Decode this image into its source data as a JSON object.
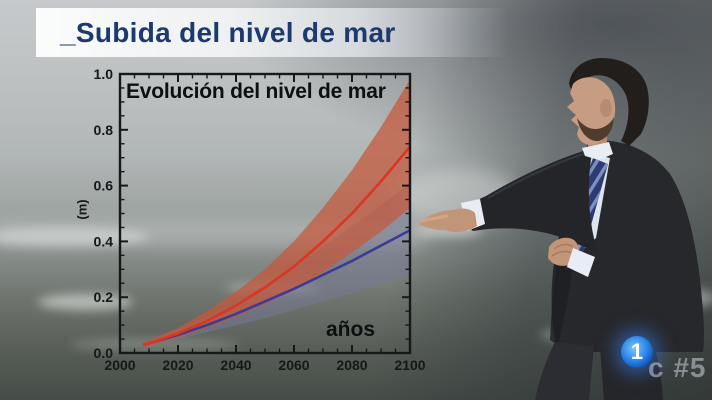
{
  "broadcast": {
    "headline": "_Subida del nivel de mar",
    "headline_color": "#1c3a6e",
    "channel_logo_number": "1",
    "watermark_text": "c #5"
  },
  "chart_data": {
    "type": "line",
    "title": "Evolución del nivel de mar",
    "inner_xlabel": "años",
    "ylabel": "(m)",
    "xlim": [
      2000,
      2100
    ],
    "ylim": [
      0,
      1
    ],
    "x_tick_labels": [
      "2000",
      "2020",
      "2040",
      "2060",
      "2080",
      "2100"
    ],
    "y_tick_labels": [
      "0.0",
      "0.2",
      "0.4",
      "0.6",
      "0.8",
      "1.0"
    ],
    "x_minor_tick_years": 5,
    "y_minor_tick": 0.05,
    "grid": false,
    "legend_position": "none",
    "background": "transparent-over-video",
    "x": [
      2008,
      2010,
      2020,
      2030,
      2040,
      2050,
      2060,
      2070,
      2080,
      2090,
      2100
    ],
    "series": [
      {
        "name": "proyección escenario alto (línea roja)",
        "line_color": "#dc3522",
        "band_color": "rgba(198,88,58,0.72)",
        "values": [
          0.03,
          0.035,
          0.07,
          0.115,
          0.17,
          0.235,
          0.31,
          0.4,
          0.5,
          0.615,
          0.74
        ],
        "band_upper": [
          0.04,
          0.045,
          0.09,
          0.15,
          0.22,
          0.3,
          0.4,
          0.52,
          0.655,
          0.81,
          0.98
        ],
        "band_lower": [
          0.02,
          0.025,
          0.055,
          0.09,
          0.13,
          0.175,
          0.225,
          0.29,
          0.36,
          0.435,
          0.52
        ]
      },
      {
        "name": "proyección escenario bajo (línea azul)",
        "line_color": "#3c3c94",
        "band_color": "rgba(118,120,148,0.55)",
        "values": [
          0.03,
          0.035,
          0.065,
          0.1,
          0.14,
          0.185,
          0.23,
          0.28,
          0.33,
          0.385,
          0.44
        ],
        "band_upper": [
          0.04,
          0.045,
          0.085,
          0.13,
          0.185,
          0.245,
          0.31,
          0.38,
          0.455,
          0.53,
          0.61
        ],
        "band_lower": [
          0.02,
          0.025,
          0.05,
          0.075,
          0.1,
          0.125,
          0.155,
          0.185,
          0.215,
          0.245,
          0.28
        ]
      }
    ]
  }
}
